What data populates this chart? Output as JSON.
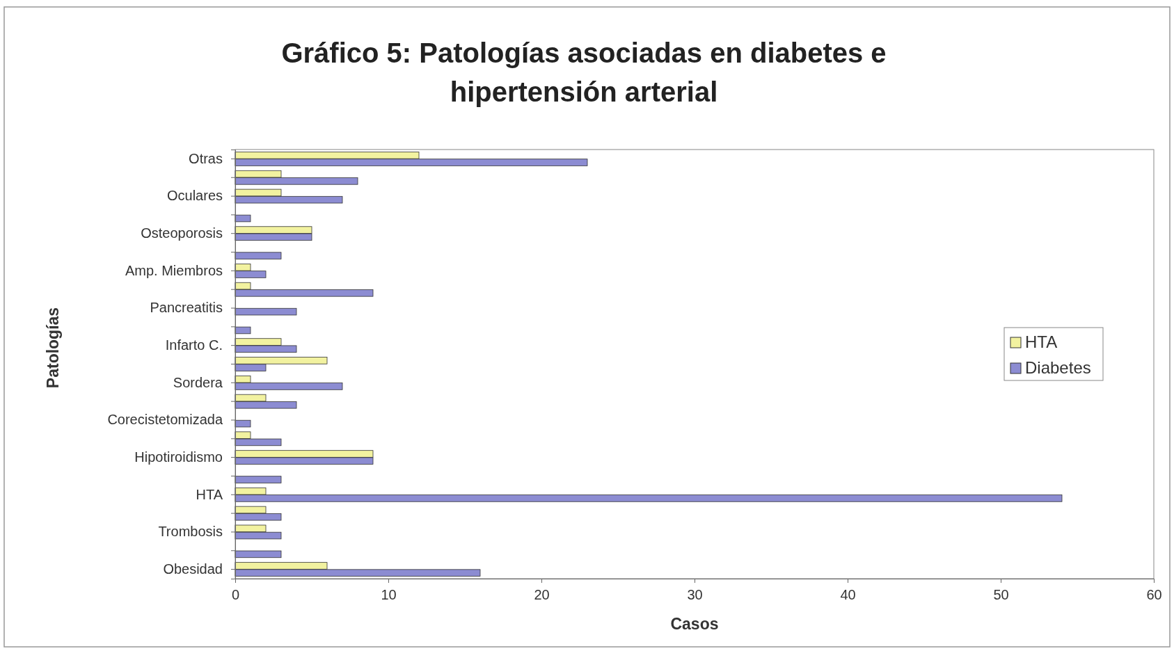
{
  "chart_data": {
    "type": "bar",
    "orientation": "horizontal",
    "title": "Gráfico 5: Patologías asociadas en diabetes e hipertensión arterial",
    "xlabel": "Casos",
    "ylabel": "Patologías",
    "categories": [
      "Otras",
      null,
      "Oculares",
      null,
      "Osteoporosis",
      null,
      "Amp. Miembros",
      null,
      "Pancreatitis",
      null,
      "Infarto C.",
      null,
      "Sordera",
      null,
      "Corecistetomizada",
      null,
      "Hipotiroidismo",
      null,
      "HTA",
      null,
      "Trombosis",
      null,
      "Obesidad"
    ],
    "series": [
      {
        "name": "HTA",
        "color": "#f2f2a0",
        "values": [
          12,
          3,
          3,
          0,
          5,
          0,
          1,
          1,
          0,
          0,
          3,
          6,
          1,
          2,
          0,
          1,
          9,
          0,
          2,
          2,
          2,
          0,
          6
        ]
      },
      {
        "name": "Diabetes",
        "color": "#8c8cd2",
        "values": [
          23,
          8,
          7,
          1,
          5,
          3,
          2,
          9,
          4,
          1,
          4,
          2,
          7,
          4,
          1,
          3,
          9,
          3,
          54,
          3,
          3,
          3,
          16
        ]
      }
    ],
    "xlim": [
      0,
      60
    ],
    "xticks": [
      0,
      10,
      20,
      30,
      40,
      50,
      60
    ],
    "legend": "right",
    "grid": false
  }
}
